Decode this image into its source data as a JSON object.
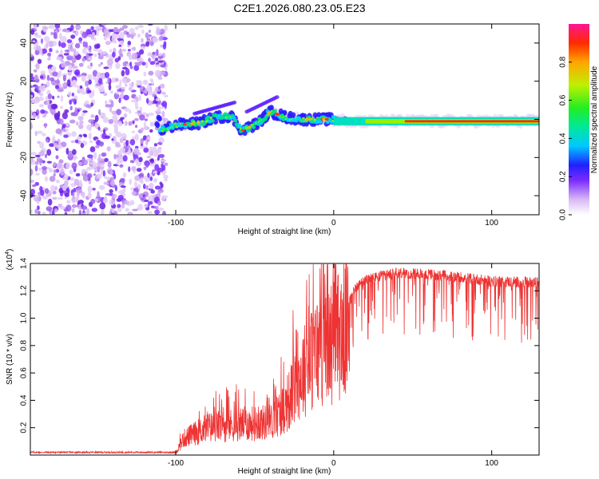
{
  "title": "C2E1.2026.080.23.05.E23",
  "chart_data": [
    {
      "type": "heatmap",
      "name": "spectrogram",
      "xlabel": "Height of straight line (km)",
      "ylabel": "Frequency (Hz)",
      "xlim": [
        -192,
        130
      ],
      "ylim": [
        -50,
        50
      ],
      "xticks": [
        -100,
        0,
        100
      ],
      "yticks": [
        -40,
        -20,
        0,
        20,
        40
      ],
      "colorbar": {
        "label": "Normalized spectral amplitude",
        "range": [
          0.0,
          1.0
        ],
        "ticks": [
          "0.0",
          "0.2",
          "0.4",
          "0.6",
          "0.8"
        ]
      },
      "ridge": [
        {
          "x": -110,
          "y": -6
        },
        {
          "x": -100,
          "y": -3
        },
        {
          "x": -85,
          "y": -2
        },
        {
          "x": -75,
          "y": 1
        },
        {
          "x": -65,
          "y": 2
        },
        {
          "x": -58,
          "y": -6
        },
        {
          "x": -48,
          "y": -2
        },
        {
          "x": -40,
          "y": 4
        },
        {
          "x": -30,
          "y": 1
        },
        {
          "x": -20,
          "y": 0
        },
        {
          "x": 0,
          "y": 0
        },
        {
          "x": 20,
          "y": -1
        },
        {
          "x": 60,
          "y": -1
        },
        {
          "x": 100,
          "y": -1
        },
        {
          "x": 130,
          "y": -1
        }
      ]
    },
    {
      "type": "line",
      "name": "snr",
      "xlabel": "Height of straight line (km)",
      "ylabel": "SNR (10 * v/v)",
      "yscale_label": "(x10",
      "yscale_exp": "4",
      "color": "#ee3333",
      "xlim": [
        -192,
        130
      ],
      "ylim": [
        0,
        1.4
      ],
      "xticks": [
        -100,
        0,
        100
      ],
      "yticks": [
        "0.2",
        "0.4",
        "0.6",
        "0.8",
        "1.0",
        "1.2",
        "1.4"
      ],
      "envelope": [
        {
          "x": -192,
          "y": 0.02
        },
        {
          "x": -100,
          "y": 0.02
        },
        {
          "x": -95,
          "y": 0.15
        },
        {
          "x": -80,
          "y": 0.25
        },
        {
          "x": -60,
          "y": 0.28
        },
        {
          "x": -40,
          "y": 0.3
        },
        {
          "x": -30,
          "y": 0.45
        },
        {
          "x": -20,
          "y": 0.75
        },
        {
          "x": -10,
          "y": 0.95
        },
        {
          "x": 0,
          "y": 1.05
        },
        {
          "x": 10,
          "y": 1.18
        },
        {
          "x": 20,
          "y": 1.28
        },
        {
          "x": 40,
          "y": 1.33
        },
        {
          "x": 60,
          "y": 1.32
        },
        {
          "x": 80,
          "y": 1.3
        },
        {
          "x": 100,
          "y": 1.27
        },
        {
          "x": 130,
          "y": 1.26
        }
      ]
    }
  ]
}
